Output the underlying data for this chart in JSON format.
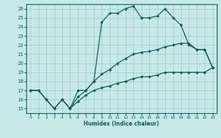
{
  "xlabel": "Humidex (Indice chaleur)",
  "bg_color": "#c8e8e8",
  "grid_color": "#a0c4c4",
  "line_color": "#006060",
  "xlim": [
    -0.5,
    23.5
  ],
  "ylim": [
    14.5,
    26.5
  ],
  "xticks": [
    0,
    1,
    2,
    3,
    4,
    5,
    6,
    7,
    8,
    9,
    10,
    11,
    12,
    13,
    14,
    15,
    16,
    17,
    18,
    19,
    20,
    21,
    22,
    23
  ],
  "yticks": [
    15,
    16,
    17,
    18,
    19,
    20,
    21,
    22,
    23,
    24,
    25,
    26
  ],
  "curve1_x": [
    0,
    1,
    2,
    3,
    4,
    5,
    6,
    7,
    8,
    9,
    10,
    11,
    12,
    13,
    14,
    15,
    16,
    17,
    18,
    19,
    20,
    21,
    22,
    23
  ],
  "curve1_y": [
    17,
    17,
    16,
    15,
    16,
    15,
    17,
    17,
    18,
    24.5,
    25.5,
    25.5,
    26,
    26.3,
    25,
    25,
    25.2,
    26,
    25,
    24.2,
    22,
    21.5,
    21.5,
    19.5
  ],
  "curve2_x": [
    0,
    1,
    2,
    3,
    4,
    5,
    6,
    7,
    8,
    9,
    10,
    11,
    12,
    13,
    14,
    15,
    16,
    17,
    18,
    19,
    20,
    21,
    22,
    23
  ],
  "curve2_y": [
    17,
    17,
    16,
    15,
    16,
    15,
    16.3,
    17,
    18,
    18.8,
    19.3,
    20,
    20.5,
    21,
    21.2,
    21.3,
    21.5,
    21.8,
    22,
    22.2,
    22.2,
    21.5,
    21.5,
    19.5
  ],
  "curve3_x": [
    0,
    1,
    2,
    3,
    4,
    5,
    6,
    7,
    8,
    9,
    10,
    11,
    12,
    13,
    14,
    15,
    16,
    17,
    18,
    19,
    20,
    21,
    22,
    23
  ],
  "curve3_y": [
    17,
    17,
    16,
    15,
    16,
    15,
    15.8,
    16.5,
    17,
    17.3,
    17.5,
    17.8,
    18,
    18.3,
    18.5,
    18.5,
    18.7,
    19,
    19,
    19,
    19,
    19,
    19,
    19.5
  ]
}
